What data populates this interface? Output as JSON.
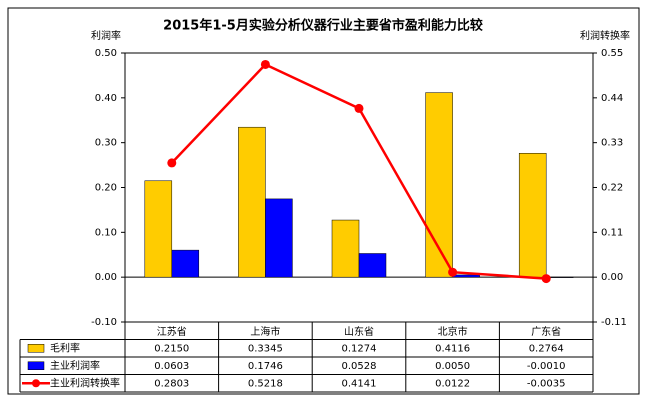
{
  "chart_data": {
    "type": "bar-line",
    "title": "2015年1-5月实验分析仪器行业主要省市盈利能力比较",
    "y_label": "利润率",
    "y2_label": "利润转换率",
    "categories": [
      "江苏省",
      "上海市",
      "山东省",
      "北京市",
      "广东省"
    ],
    "ylim": [
      -0.1,
      0.5
    ],
    "yticks": [
      {
        "value": 0.5,
        "label": "0.50"
      },
      {
        "value": 0.4,
        "label": "0.40"
      },
      {
        "value": 0.3,
        "label": "0.30"
      },
      {
        "value": 0.2,
        "label": "0.20"
      },
      {
        "value": 0.1,
        "label": "0.10"
      },
      {
        "value": 0,
        "label": "0.00"
      },
      {
        "value": -0.1,
        "label": "-0.10"
      }
    ],
    "y2lim": [
      -0.11,
      0.55
    ],
    "y2ticks": [
      {
        "value": 0.55,
        "label": "0.55"
      },
      {
        "value": 0.44,
        "label": "0.44"
      },
      {
        "value": 0.33,
        "label": "0.33"
      },
      {
        "value": 0.22,
        "label": "0.22"
      },
      {
        "value": 0.11,
        "label": "0.11"
      },
      {
        "value": 0,
        "label": "0.00"
      },
      {
        "value": -0.11,
        "label": "-0.11"
      }
    ],
    "series": [
      {
        "name": "毛利率",
        "type": "bar",
        "color": "#ffcc00",
        "values": [
          0.215,
          0.3345,
          0.1274,
          0.4116,
          0.2764
        ],
        "value_labels": [
          "0.2150",
          "0.3345",
          "0.1274",
          "0.4116",
          "0.2764"
        ]
      },
      {
        "name": "主业利润率",
        "type": "bar",
        "color": "#0000ff",
        "values": [
          0.0603,
          0.1746,
          0.0528,
          0.005,
          -0.001
        ],
        "value_labels": [
          "0.0603",
          "0.1746",
          "0.0528",
          "0.0050",
          "-0.0010"
        ]
      },
      {
        "name": "主业利润转换率",
        "type": "line",
        "axis": "y2",
        "color": "#ff0000",
        "values": [
          0.2803,
          0.5218,
          0.4141,
          0.0122,
          -0.0035
        ],
        "value_labels": [
          "0.2803",
          "0.5218",
          "0.4141",
          "0.0122",
          "-0.0035"
        ]
      }
    ]
  }
}
